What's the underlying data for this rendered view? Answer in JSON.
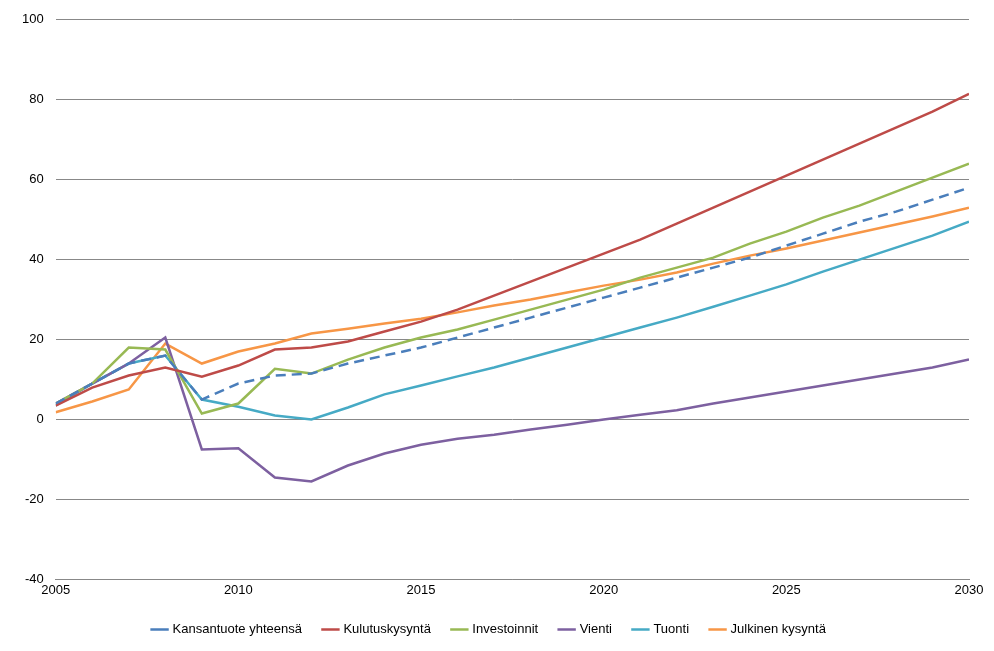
{
  "chart_data": {
    "type": "line",
    "x": [
      2005,
      2006,
      2007,
      2008,
      2009,
      2010,
      2011,
      2012,
      2013,
      2014,
      2015,
      2016,
      2017,
      2018,
      2019,
      2020,
      2021,
      2022,
      2023,
      2024,
      2025,
      2026,
      2027,
      2028,
      2029,
      2030
    ],
    "xlim": [
      2005,
      2030
    ],
    "xticks": [
      2005,
      2010,
      2015,
      2020,
      2025,
      2030
    ],
    "ylim": [
      -40,
      100
    ],
    "yticks": [
      -40,
      -20,
      0,
      20,
      40,
      60,
      80,
      100
    ],
    "grid": "y",
    "legend": "bottom",
    "marker": "none",
    "series": [
      {
        "name": "Kansantuote yhteensä",
        "color": "#4a7ebb",
        "line_style": "dashed",
        "values": [
          4,
          9,
          14,
          16,
          5,
          9,
          11,
          11.5,
          14,
          16,
          18,
          20.5,
          23,
          25.5,
          28,
          30.5,
          33,
          35.5,
          38,
          40.5,
          43.5,
          46.5,
          49.5,
          52,
          55,
          58
        ]
      },
      {
        "name": "Kulutuskysyntä",
        "color": "#be4b48",
        "line_style": "solid",
        "values": [
          3.5,
          8,
          11,
          13,
          10.7,
          13.5,
          17.5,
          18,
          19.5,
          22,
          24.5,
          27.5,
          31,
          34.5,
          38,
          41.5,
          45,
          49,
          53,
          57,
          61,
          65,
          69,
          73,
          77,
          81.5
        ]
      },
      {
        "name": "Investoinnit",
        "color": "#98b954",
        "line_style": "solid",
        "values": [
          4,
          9,
          18,
          17.5,
          1.5,
          4,
          12.7,
          11.5,
          15,
          18,
          20.5,
          22.5,
          25,
          27.5,
          30,
          32.5,
          35.5,
          38,
          40.5,
          44,
          47,
          50.5,
          53.5,
          57,
          60.5,
          64
        ]
      },
      {
        "name": "Vienti",
        "color": "#7d60a0",
        "line_style": "solid",
        "values": [
          4,
          9,
          14,
          20.5,
          -7.5,
          -7.2,
          -14.5,
          -15.5,
          -11.5,
          -8.5,
          -6.3,
          -4.8,
          -3.8,
          -2.5,
          -1.3,
          0,
          1.2,
          2.3,
          4,
          5.5,
          7,
          8.5,
          10,
          11.5,
          13,
          15
        ]
      },
      {
        "name": "Tuonti",
        "color": "#46aac5",
        "line_style": "solid",
        "values": [
          3.5,
          9,
          14,
          16,
          5,
          3.2,
          1,
          0,
          3,
          6.3,
          8.5,
          10.8,
          13,
          15.5,
          18,
          20.5,
          23,
          25.5,
          28.2,
          31,
          33.8,
          37,
          40,
          43,
          46,
          49.5
        ]
      },
      {
        "name": "Julkinen kysyntä",
        "color": "#f79646",
        "line_style": "solid",
        "values": [
          1.8,
          4.5,
          7.5,
          19,
          14,
          17,
          19,
          21.5,
          22.7,
          24,
          25.2,
          26.8,
          28.5,
          30,
          31.8,
          33.5,
          35,
          36.8,
          39,
          41,
          42.8,
          44.8,
          46.8,
          48.8,
          50.8,
          53
        ]
      }
    ]
  }
}
